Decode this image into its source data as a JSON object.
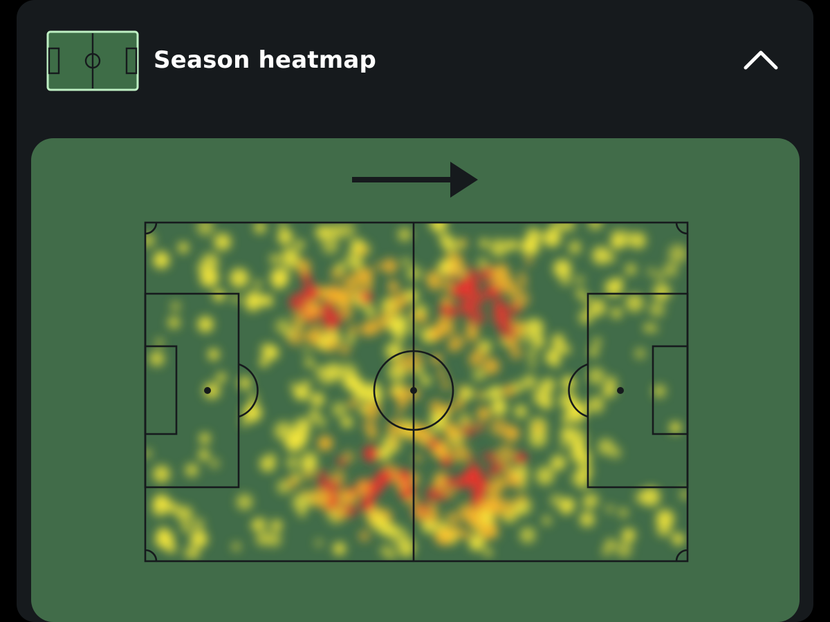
{
  "header": {
    "title": "Season heatmap",
    "icon": "pitch-icon",
    "collapse_icon": "chevron-up-icon"
  },
  "heatmap": {
    "attack_direction": "left-to-right",
    "pitch_color": "#416c49",
    "line_color": "#161a1d",
    "heat_colors": [
      "#f2e63c",
      "#f5b42a",
      "#f0332c"
    ]
  },
  "colors": {
    "card": "#161a1d",
    "icon_fill": "#3e6d47",
    "icon_stroke": "#bff0c4",
    "text": "#ffffff"
  }
}
